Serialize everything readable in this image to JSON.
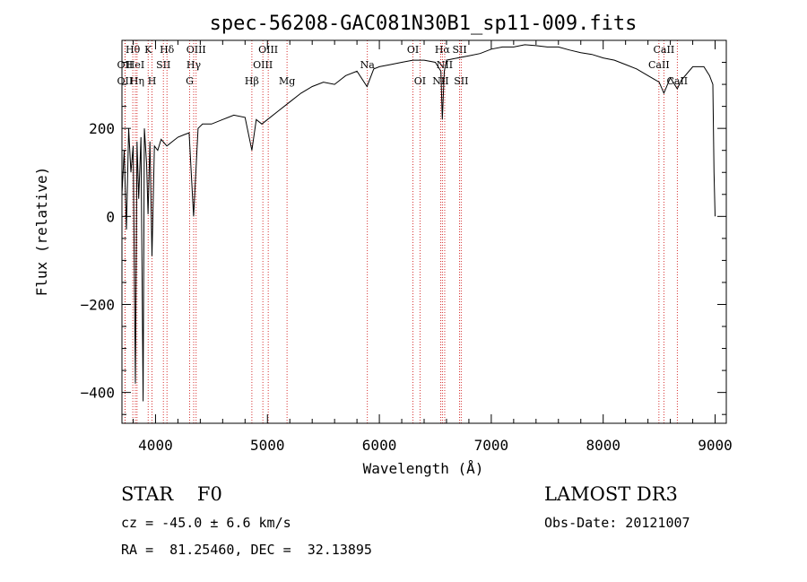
{
  "chart_data": {
    "type": "line",
    "title": "spec-56208-GAC081N30B1_sp11-009.fits",
    "xlabel": "Wavelength (Å)",
    "ylabel": "Flux (relative)",
    "xlim": [
      3700,
      9100
    ],
    "ylim": [
      -470,
      400
    ],
    "xticks": [
      4000,
      5000,
      6000,
      7000,
      8000,
      9000
    ],
    "yticks": [
      -400,
      -200,
      0,
      200
    ],
    "spectrum": {
      "x": [
        3700,
        3720,
        3740,
        3760,
        3780,
        3800,
        3820,
        3835,
        3850,
        3870,
        3889,
        3900,
        3920,
        3933,
        3950,
        3968,
        3990,
        4020,
        4050,
        4101,
        4150,
        4200,
        4250,
        4300,
        4340,
        4380,
        4420,
        4500,
        4600,
        4700,
        4800,
        4861,
        4900,
        4950,
        5000,
        5100,
        5200,
        5300,
        5400,
        5500,
        5600,
        5700,
        5800,
        5890,
        5950,
        6000,
        6100,
        6200,
        6300,
        6400,
        6500,
        6550,
        6563,
        6580,
        6600,
        6700,
        6800,
        6900,
        7000,
        7100,
        7200,
        7300,
        7400,
        7500,
        7600,
        7700,
        7800,
        7900,
        8000,
        8100,
        8200,
        8300,
        8400,
        8500,
        8542,
        8600,
        8662,
        8700,
        8800,
        8900,
        8950,
        8980,
        8990,
        9000
      ],
      "flux": [
        50,
        150,
        -30,
        200,
        100,
        160,
        -380,
        170,
        40,
        180,
        -420,
        200,
        120,
        5,
        170,
        -90,
        160,
        150,
        175,
        160,
        170,
        180,
        185,
        190,
        0,
        200,
        210,
        210,
        220,
        230,
        225,
        150,
        220,
        210,
        220,
        240,
        260,
        280,
        295,
        305,
        300,
        320,
        330,
        295,
        335,
        340,
        345,
        350,
        355,
        355,
        350,
        330,
        220,
        330,
        355,
        360,
        365,
        370,
        380,
        385,
        385,
        390,
        388,
        385,
        385,
        378,
        372,
        368,
        360,
        355,
        345,
        335,
        320,
        305,
        280,
        315,
        290,
        310,
        340,
        340,
        320,
        300,
        100,
        0
      ]
    },
    "lines": [
      {
        "label": "Hθ",
        "x": 3797,
        "row": 0
      },
      {
        "label": "OII",
        "x": 3727,
        "row": 1
      },
      {
        "label": "OII",
        "x": 3727,
        "row": 2
      },
      {
        "label": "HeI",
        "x": 3820,
        "row": 1
      },
      {
        "label": "Hη",
        "x": 3835,
        "row": 2
      },
      {
        "label": "K",
        "x": 3934,
        "row": 0
      },
      {
        "label": "SII",
        "x": 4070,
        "row": 1
      },
      {
        "label": "H",
        "x": 3969,
        "row": 2
      },
      {
        "label": "Hδ",
        "x": 4102,
        "row": 0
      },
      {
        "label": "OIII",
        "x": 4363,
        "row": 0
      },
      {
        "label": "Hγ",
        "x": 4341,
        "row": 1
      },
      {
        "label": "G",
        "x": 4305,
        "row": 2
      },
      {
        "label": "Hβ",
        "x": 4861,
        "row": 2
      },
      {
        "label": "OIII",
        "x": 5007,
        "row": 0
      },
      {
        "label": "OIII",
        "x": 4959,
        "row": 1
      },
      {
        "label": "Mg",
        "x": 5175,
        "row": 2
      },
      {
        "label": "Na",
        "x": 5893,
        "row": 1
      },
      {
        "label": "OI",
        "x": 6300,
        "row": 0
      },
      {
        "label": "OI",
        "x": 6363,
        "row": 2
      },
      {
        "label": "Hα",
        "x": 6563,
        "row": 0
      },
      {
        "label": "SII",
        "x": 6717,
        "row": 0
      },
      {
        "label": "NII",
        "x": 6584,
        "row": 1
      },
      {
        "label": "NII",
        "x": 6548,
        "row": 2
      },
      {
        "label": "SII",
        "x": 6731,
        "row": 2
      },
      {
        "label": "CaII",
        "x": 8542,
        "row": 0
      },
      {
        "label": "CaII",
        "x": 8498,
        "row": 1
      },
      {
        "label": "CaII",
        "x": 8662,
        "row": 2
      }
    ]
  },
  "info": {
    "class": "STAR    F0",
    "survey": "LAMOST DR3",
    "cz": "cz = -45.0 ± 6.6 km/s",
    "obs_date": "Obs-Date: 20121007",
    "coords": "RA =  81.25460, DEC =  32.13895"
  },
  "colors": {
    "line_marker": "#cc0000",
    "spectrum": "#000000"
  }
}
